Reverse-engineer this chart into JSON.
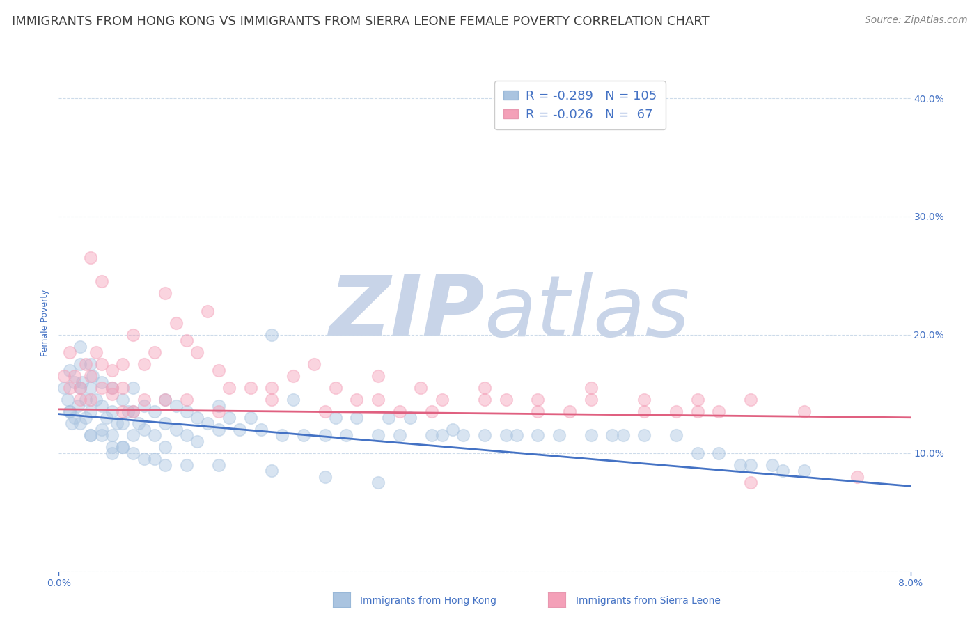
{
  "title": "IMMIGRANTS FROM HONG KONG VS IMMIGRANTS FROM SIERRA LEONE FEMALE POVERTY CORRELATION CHART",
  "source": "Source: ZipAtlas.com",
  "ylabel": "Female Poverty",
  "legend_entries": [
    {
      "label": "Immigrants from Hong Kong",
      "color": "#aac4e0",
      "R": "-0.289",
      "N": "105"
    },
    {
      "label": "Immigrants from Sierra Leone",
      "color": "#f4a0b8",
      "R": "-0.026",
      "N": " 67"
    }
  ],
  "xlim": [
    0.0,
    0.08
  ],
  "ylim": [
    0.0,
    0.42
  ],
  "xticks": [
    0.0,
    0.08
  ],
  "xticklabels": [
    "0.0%",
    "8.0%"
  ],
  "yticks_right": [
    0.1,
    0.2,
    0.3,
    0.4
  ],
  "yticklabels_right": [
    "10.0%",
    "20.0%",
    "30.0%",
    "40.0%"
  ],
  "watermark_zip": "ZIP",
  "watermark_atlas": "atlas",
  "hk_color": "#aac4e0",
  "sl_color": "#f4a0b8",
  "hk_line_color": "#4472c4",
  "sl_line_color": "#e06080",
  "title_color": "#404040",
  "source_color": "#888888",
  "axis_color": "#4472c4",
  "legend_text_color": "#4472c4",
  "watermark_color_zip": "#c8d4e8",
  "watermark_color_atlas": "#c8d4e8",
  "background_color": "#ffffff",
  "grid_color": "#c8d8e8",
  "title_fontsize": 13,
  "source_fontsize": 10,
  "axis_label_fontsize": 9,
  "tick_fontsize": 10,
  "legend_fontsize": 13,
  "hk_trend_x": [
    0.0,
    0.08
  ],
  "hk_trend_y": [
    0.133,
    0.072
  ],
  "sl_trend_x": [
    0.0,
    0.08
  ],
  "sl_trend_y": [
    0.137,
    0.13
  ],
  "hk_scatter_x": [
    0.0005,
    0.0008,
    0.001,
    0.001,
    0.0012,
    0.0015,
    0.0015,
    0.0018,
    0.002,
    0.002,
    0.002,
    0.0022,
    0.0025,
    0.0025,
    0.003,
    0.003,
    0.003,
    0.003,
    0.0032,
    0.0035,
    0.004,
    0.004,
    0.004,
    0.0045,
    0.005,
    0.005,
    0.005,
    0.005,
    0.0055,
    0.006,
    0.006,
    0.006,
    0.0065,
    0.007,
    0.007,
    0.007,
    0.0075,
    0.008,
    0.008,
    0.009,
    0.009,
    0.01,
    0.01,
    0.01,
    0.011,
    0.011,
    0.012,
    0.012,
    0.013,
    0.013,
    0.014,
    0.015,
    0.015,
    0.016,
    0.017,
    0.018,
    0.019,
    0.02,
    0.021,
    0.022,
    0.023,
    0.025,
    0.026,
    0.027,
    0.028,
    0.03,
    0.031,
    0.032,
    0.033,
    0.035,
    0.036,
    0.037,
    0.038,
    0.04,
    0.042,
    0.043,
    0.045,
    0.047,
    0.05,
    0.052,
    0.053,
    0.055,
    0.058,
    0.06,
    0.062,
    0.064,
    0.065,
    0.067,
    0.068,
    0.07,
    0.001,
    0.002,
    0.003,
    0.004,
    0.005,
    0.006,
    0.007,
    0.008,
    0.009,
    0.01,
    0.012,
    0.015,
    0.02,
    0.025,
    0.03
  ],
  "hk_scatter_y": [
    0.155,
    0.145,
    0.17,
    0.135,
    0.125,
    0.16,
    0.13,
    0.14,
    0.19,
    0.175,
    0.155,
    0.16,
    0.145,
    0.13,
    0.175,
    0.155,
    0.135,
    0.115,
    0.165,
    0.145,
    0.16,
    0.14,
    0.12,
    0.13,
    0.155,
    0.135,
    0.115,
    0.1,
    0.125,
    0.145,
    0.125,
    0.105,
    0.135,
    0.155,
    0.135,
    0.115,
    0.125,
    0.14,
    0.12,
    0.135,
    0.115,
    0.145,
    0.125,
    0.105,
    0.14,
    0.12,
    0.135,
    0.115,
    0.13,
    0.11,
    0.125,
    0.14,
    0.12,
    0.13,
    0.12,
    0.13,
    0.12,
    0.2,
    0.115,
    0.145,
    0.115,
    0.115,
    0.13,
    0.115,
    0.13,
    0.115,
    0.13,
    0.115,
    0.13,
    0.115,
    0.115,
    0.12,
    0.115,
    0.115,
    0.115,
    0.115,
    0.115,
    0.115,
    0.115,
    0.115,
    0.115,
    0.115,
    0.115,
    0.1,
    0.1,
    0.09,
    0.09,
    0.09,
    0.085,
    0.085,
    0.135,
    0.125,
    0.115,
    0.115,
    0.105,
    0.105,
    0.1,
    0.095,
    0.095,
    0.09,
    0.09,
    0.09,
    0.085,
    0.08,
    0.075
  ],
  "sl_scatter_x": [
    0.0005,
    0.001,
    0.001,
    0.0015,
    0.002,
    0.002,
    0.0025,
    0.003,
    0.003,
    0.0035,
    0.004,
    0.004,
    0.005,
    0.005,
    0.006,
    0.006,
    0.007,
    0.008,
    0.009,
    0.01,
    0.011,
    0.012,
    0.013,
    0.014,
    0.015,
    0.016,
    0.018,
    0.02,
    0.022,
    0.024,
    0.026,
    0.028,
    0.03,
    0.032,
    0.034,
    0.036,
    0.04,
    0.042,
    0.045,
    0.048,
    0.05,
    0.055,
    0.058,
    0.06,
    0.062,
    0.065,
    0.003,
    0.004,
    0.005,
    0.006,
    0.007,
    0.008,
    0.01,
    0.012,
    0.015,
    0.02,
    0.025,
    0.03,
    0.035,
    0.04,
    0.045,
    0.05,
    0.055,
    0.06,
    0.065,
    0.07,
    0.075
  ],
  "sl_scatter_y": [
    0.165,
    0.185,
    0.155,
    0.165,
    0.155,
    0.145,
    0.175,
    0.165,
    0.145,
    0.185,
    0.175,
    0.155,
    0.17,
    0.15,
    0.175,
    0.155,
    0.2,
    0.175,
    0.185,
    0.235,
    0.21,
    0.195,
    0.185,
    0.22,
    0.17,
    0.155,
    0.155,
    0.155,
    0.165,
    0.175,
    0.155,
    0.145,
    0.165,
    0.135,
    0.155,
    0.145,
    0.155,
    0.145,
    0.145,
    0.135,
    0.155,
    0.145,
    0.135,
    0.145,
    0.135,
    0.075,
    0.265,
    0.245,
    0.155,
    0.135,
    0.135,
    0.145,
    0.145,
    0.145,
    0.135,
    0.145,
    0.135,
    0.145,
    0.135,
    0.145,
    0.135,
    0.145,
    0.135,
    0.135,
    0.145,
    0.135,
    0.08
  ]
}
